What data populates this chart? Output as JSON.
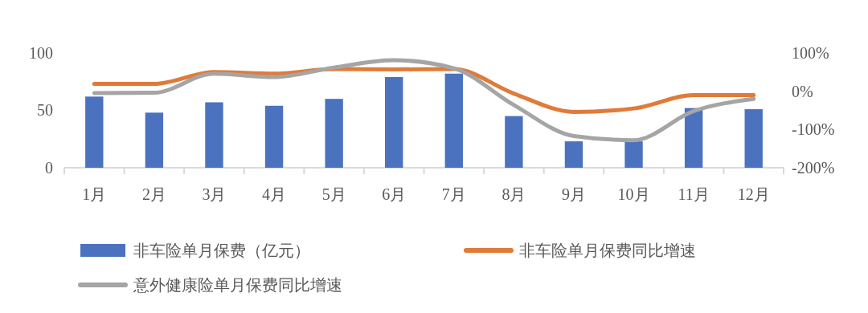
{
  "chart_data": {
    "type": "bar",
    "categories": [
      "1月",
      "2月",
      "3月",
      "4月",
      "5月",
      "6月",
      "7月",
      "8月",
      "9月",
      "10月",
      "11月",
      "12月"
    ],
    "series": [
      {
        "name": "非车险单月保费（亿元）",
        "color": "#4a72bf",
        "values": [
          62,
          48,
          57,
          54,
          60,
          79,
          82,
          45,
          23,
          23,
          52,
          51
        ]
      },
      {
        "name": "非车险单月保费同比增速",
        "type": "line",
        "axis": "y2",
        "color": "#e07b39",
        "values": [
          19,
          19,
          50,
          46,
          58,
          57,
          58,
          -6,
          -54,
          -45,
          -10,
          -10
        ]
      },
      {
        "name": "意外健康险单月保费同比增速",
        "type": "line",
        "axis": "y2",
        "color": "#a5a5a5",
        "values": [
          -5,
          -4,
          46,
          37,
          62,
          81,
          60,
          -36,
          -117,
          -128,
          -52,
          -20
        ]
      }
    ],
    "ylim": [
      0,
      100
    ],
    "yticks": [
      0,
      50,
      100
    ],
    "y2lim": [
      -200,
      100
    ],
    "y2ticks": [
      {
        "value": -200,
        "label": "-200%"
      },
      {
        "value": -100,
        "label": "-100%"
      },
      {
        "value": 0,
        "label": "0%"
      },
      {
        "value": 100,
        "label": "100%"
      }
    ],
    "legend": "bottom",
    "grid": false,
    "marker": "none",
    "line_style": "solid"
  }
}
